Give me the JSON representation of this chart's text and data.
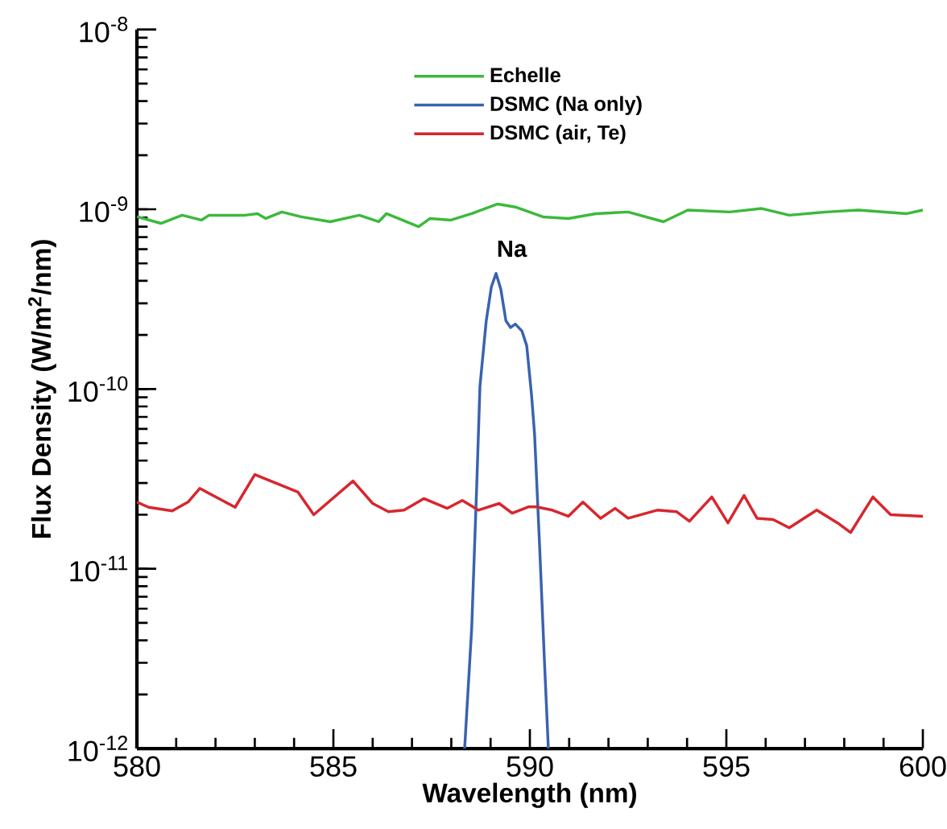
{
  "chart_data": {
    "type": "line",
    "xlabel": "Wavelength (nm)",
    "ylabel": "Flux Density (W/m$^{2}$/nm)",
    "log": "y",
    "legend": "top",
    "xlim": [
      580,
      600
    ],
    "xticks": [
      580,
      585,
      590,
      595,
      600
    ],
    "ylim": [
      1e-12,
      1e-08
    ],
    "yticks": [
      {
        "value": 1e-12,
        "label": "10$^{-12}$"
      },
      {
        "value": 1e-11,
        "label": "10$^{-11}$"
      },
      {
        "value": 1e-10,
        "label": "10$^{-10}$"
      },
      {
        "value": 1e-09,
        "label": "10$^{-9}$"
      },
      {
        "value": 1e-08,
        "label": "10$^{-8}$"
      }
    ],
    "annotations": [
      "Na"
    ],
    "series": [
      {
        "name": "Echelle",
        "color": "#3cb93c",
        "x": [
          580,
          580.61,
          581.15,
          581.64,
          581.84,
          582.75,
          583.07,
          583.28,
          583.69,
          584.18,
          584.92,
          585.66,
          586.15,
          586.35,
          587.17,
          587.46,
          587.99,
          588.52,
          589.18,
          589.63,
          590.33,
          590.98,
          591.68,
          592.5,
          593.4,
          594.02,
          595.08,
          595.9,
          596.6,
          597.54,
          598.36,
          599.59,
          600
        ],
        "values": [
          9.1e-10,
          8.35e-10,
          9.27e-10,
          8.71e-10,
          9.27e-10,
          9.27e-10,
          9.46e-10,
          8.89e-10,
          9.66e-10,
          9.08e-10,
          8.53e-10,
          9.27e-10,
          8.53e-10,
          9.46e-10,
          8e-10,
          8.89e-10,
          8.71e-10,
          9.46e-10,
          1.07e-09,
          1.03e-09,
          9.08e-10,
          8.89e-10,
          9.46e-10,
          9.66e-10,
          8.53e-10,
          9.9e-10,
          9.66e-10,
          1.01e-09,
          9.27e-10,
          9.66e-10,
          9.9e-10,
          9.46e-10,
          9.9e-10
        ]
      },
      {
        "name": "DSMC (Na only)",
        "color": "#3a62b0",
        "x": [
          588.34,
          588.52,
          588.65,
          588.73,
          588.89,
          589.02,
          589.14,
          589.26,
          589.39,
          589.51,
          589.63,
          589.8,
          589.92,
          590.04,
          590.12,
          590.25,
          590.37,
          590.47
        ],
        "values": [
          1e-12,
          4.7e-12,
          3e-11,
          1.04e-10,
          2.4e-10,
          3.7e-10,
          4.4e-10,
          3.6e-10,
          2.4e-10,
          2.2e-10,
          2.3e-10,
          2.1e-10,
          1.74e-10,
          9.4e-11,
          5.6e-11,
          1.3e-11,
          3.1e-12,
          1e-12
        ]
      },
      {
        "name": "DSMC (air, Te)",
        "color": "#d8262e",
        "x": [
          580,
          580.3,
          580.9,
          581.3,
          581.6,
          582.5,
          583.0,
          584.1,
          584.5,
          585.5,
          586.0,
          586.4,
          586.8,
          587.3,
          587.9,
          588.28,
          588.69,
          589.22,
          589.55,
          589.96,
          590.16,
          590.57,
          590.98,
          591.35,
          591.8,
          592.17,
          592.5,
          593.24,
          593.73,
          594.06,
          594.63,
          595.04,
          595.45,
          595.78,
          596.19,
          596.6,
          597.3,
          597.83,
          598.16,
          598.73,
          599.18,
          600
        ],
        "values": [
          2.35e-11,
          2.2e-11,
          2.1e-11,
          2.35e-11,
          2.8e-11,
          2.2e-11,
          3.34e-11,
          2.67e-11,
          2e-11,
          3.08e-11,
          2.31e-11,
          2.08e-11,
          2.12e-11,
          2.46e-11,
          2.17e-11,
          2.4e-11,
          2.12e-11,
          2.31e-11,
          2.04e-11,
          2.21e-11,
          2.21e-11,
          2.12e-11,
          1.96e-11,
          2.35e-11,
          1.91e-11,
          2.17e-11,
          1.91e-11,
          2.12e-11,
          2.08e-11,
          1.84e-11,
          2.51e-11,
          1.8e-11,
          2.56e-11,
          1.91e-11,
          1.88e-11,
          1.69e-11,
          2.12e-11,
          1.8e-11,
          1.59e-11,
          2.51e-11,
          2e-11,
          1.96e-11
        ]
      }
    ]
  }
}
